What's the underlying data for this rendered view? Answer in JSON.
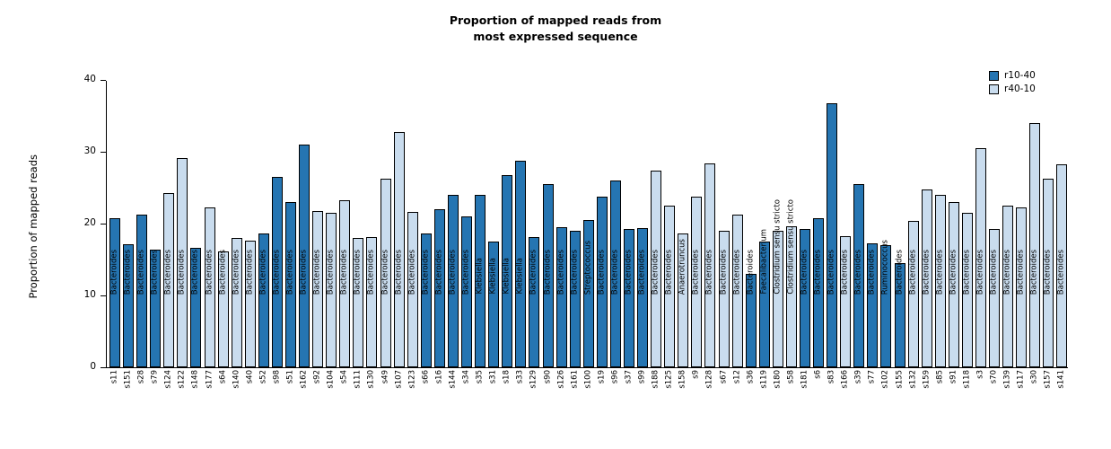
{
  "title": {
    "line1": "Proportion of mapped reads from",
    "line2": "most expressed sequence"
  },
  "y_axis": {
    "label": "Proportion of mapped reads",
    "ticks": [
      0,
      10,
      20,
      30,
      40
    ]
  },
  "legend": [
    {
      "label": "r10-40",
      "color": "#2575b2"
    },
    {
      "label": "r40-10",
      "color": "#c9dcee"
    }
  ],
  "chart_data": {
    "type": "bar",
    "title": "Proportion of mapped reads from most expressed sequence",
    "xlabel": "",
    "ylabel": "Proportion of mapped reads",
    "ylim": [
      0,
      40
    ],
    "grid": false,
    "legend_position": "top-right",
    "bar_label_note": "each bar carries the genus name of the most expressed sequence, drawn vertically",
    "bars": [
      {
        "sample": "s11",
        "value": 20.7,
        "group": "r10-40",
        "label": "Bacteroides"
      },
      {
        "sample": "s151",
        "value": 17.1,
        "group": "r10-40",
        "label": "Bacteroides"
      },
      {
        "sample": "s28",
        "value": 21.2,
        "group": "r10-40",
        "label": "Bacteroides"
      },
      {
        "sample": "s79",
        "value": 16.4,
        "group": "r10-40",
        "label": "Bacteroides"
      },
      {
        "sample": "s124",
        "value": 24.2,
        "group": "r40-10",
        "label": "Bacteroides"
      },
      {
        "sample": "s122",
        "value": 29.1,
        "group": "r40-10",
        "label": "Bacteroides"
      },
      {
        "sample": "s148",
        "value": 16.6,
        "group": "r10-40",
        "label": "Bacteroides"
      },
      {
        "sample": "s177",
        "value": 22.2,
        "group": "r40-10",
        "label": "Bacteroides"
      },
      {
        "sample": "s64",
        "value": 16.1,
        "group": "r40-10",
        "label": "Bacteroides"
      },
      {
        "sample": "s140",
        "value": 18.0,
        "group": "r40-10",
        "label": "Bacteroides"
      },
      {
        "sample": "s40",
        "value": 17.6,
        "group": "r40-10",
        "label": "Bacteroides"
      },
      {
        "sample": "s52",
        "value": 18.6,
        "group": "r10-40",
        "label": "Bacteroides"
      },
      {
        "sample": "s98",
        "value": 26.5,
        "group": "r10-40",
        "label": "Bacteroides"
      },
      {
        "sample": "s51",
        "value": 23.0,
        "group": "r10-40",
        "label": "Bacteroides"
      },
      {
        "sample": "s162",
        "value": 31.0,
        "group": "r10-40",
        "label": "Bacteroides"
      },
      {
        "sample": "s92",
        "value": 21.8,
        "group": "r40-10",
        "label": "Bacteroides"
      },
      {
        "sample": "s104",
        "value": 21.5,
        "group": "r40-10",
        "label": "Bacteroides"
      },
      {
        "sample": "s54",
        "value": 23.2,
        "group": "r40-10",
        "label": "Bacteroides"
      },
      {
        "sample": "s111",
        "value": 18.0,
        "group": "r40-10",
        "label": "Bacteroides"
      },
      {
        "sample": "s130",
        "value": 18.1,
        "group": "r40-10",
        "label": "Bacteroides"
      },
      {
        "sample": "s49",
        "value": 26.2,
        "group": "r40-10",
        "label": "Bacteroides"
      },
      {
        "sample": "s107",
        "value": 32.8,
        "group": "r40-10",
        "label": "Bacteroides"
      },
      {
        "sample": "s123",
        "value": 21.6,
        "group": "r40-10",
        "label": "Bacteroides"
      },
      {
        "sample": "s66",
        "value": 18.6,
        "group": "r10-40",
        "label": "Bacteroides"
      },
      {
        "sample": "s16",
        "value": 22.0,
        "group": "r10-40",
        "label": "Bacteroides"
      },
      {
        "sample": "s144",
        "value": 24.0,
        "group": "r10-40",
        "label": "Bacteroides"
      },
      {
        "sample": "s34",
        "value": 21.0,
        "group": "r10-40",
        "label": "Bacteroides"
      },
      {
        "sample": "s35",
        "value": 24.0,
        "group": "r10-40",
        "label": "Klebsiella"
      },
      {
        "sample": "s31",
        "value": 17.5,
        "group": "r10-40",
        "label": "Klebsiella"
      },
      {
        "sample": "s18",
        "value": 26.8,
        "group": "r10-40",
        "label": "Klebsiella"
      },
      {
        "sample": "s33",
        "value": 28.7,
        "group": "r10-40",
        "label": "Klebsiella"
      },
      {
        "sample": "s129",
        "value": 18.1,
        "group": "r10-40",
        "label": "Bacteroides"
      },
      {
        "sample": "s90",
        "value": 25.5,
        "group": "r10-40",
        "label": "Bacteroides"
      },
      {
        "sample": "s126",
        "value": 19.5,
        "group": "r10-40",
        "label": "Bacteroides"
      },
      {
        "sample": "s161",
        "value": 19.0,
        "group": "r10-40",
        "label": "Bacteroides"
      },
      {
        "sample": "s100",
        "value": 20.5,
        "group": "r10-40",
        "label": "Streptococcus"
      },
      {
        "sample": "s19",
        "value": 23.8,
        "group": "r10-40",
        "label": "Bacteroides"
      },
      {
        "sample": "s96",
        "value": 26.0,
        "group": "r10-40",
        "label": "Bacteroides"
      },
      {
        "sample": "s37",
        "value": 19.3,
        "group": "r10-40",
        "label": "Bacteroides"
      },
      {
        "sample": "s99",
        "value": 19.4,
        "group": "r10-40",
        "label": "Bacteroides"
      },
      {
        "sample": "s188",
        "value": 27.4,
        "group": "r40-10",
        "label": "Bacteroides"
      },
      {
        "sample": "s125",
        "value": 22.5,
        "group": "r40-10",
        "label": "Bacteroides"
      },
      {
        "sample": "s158",
        "value": 18.6,
        "group": "r40-10",
        "label": "Anaerotruncus"
      },
      {
        "sample": "s9",
        "value": 23.8,
        "group": "r40-10",
        "label": "Bacteroides"
      },
      {
        "sample": "s128",
        "value": 28.4,
        "group": "r40-10",
        "label": "Bacteroides"
      },
      {
        "sample": "s67",
        "value": 19.0,
        "group": "r40-10",
        "label": "Bacteroides"
      },
      {
        "sample": "s12",
        "value": 21.2,
        "group": "r40-10",
        "label": "Bacteroides"
      },
      {
        "sample": "s36",
        "value": 13.0,
        "group": "r10-40",
        "label": "Bacteroides"
      },
      {
        "sample": "s119",
        "value": 17.5,
        "group": "r10-40",
        "label": "Faecalibacterium"
      },
      {
        "sample": "s180",
        "value": 19.0,
        "group": "r40-10",
        "label": "Clostridium sensu stricto"
      },
      {
        "sample": "s58",
        "value": 19.6,
        "group": "r40-10",
        "label": "Clostridium sensu stricto"
      },
      {
        "sample": "s181",
        "value": 19.3,
        "group": "r10-40",
        "label": "Bacteroides"
      },
      {
        "sample": "s6",
        "value": 20.7,
        "group": "r10-40",
        "label": "Bacteroides"
      },
      {
        "sample": "s83",
        "value": 36.8,
        "group": "r10-40",
        "label": "Bacteroides"
      },
      {
        "sample": "s166",
        "value": 18.3,
        "group": "r40-10",
        "label": "Bacteroides"
      },
      {
        "sample": "s39",
        "value": 25.5,
        "group": "r10-40",
        "label": "Bacteroides"
      },
      {
        "sample": "s77",
        "value": 17.2,
        "group": "r10-40",
        "label": "Bacteroides"
      },
      {
        "sample": "s102",
        "value": 17.0,
        "group": "r10-40",
        "label": "Ruminococcus"
      },
      {
        "sample": "s155",
        "value": 14.5,
        "group": "r10-40",
        "label": "Bacteroides"
      },
      {
        "sample": "s132",
        "value": 20.4,
        "group": "r40-10",
        "label": "Bacteroides"
      },
      {
        "sample": "s159",
        "value": 24.8,
        "group": "r40-10",
        "label": "Bacteroides"
      },
      {
        "sample": "s85",
        "value": 24.0,
        "group": "r40-10",
        "label": "Bacteroides"
      },
      {
        "sample": "s91",
        "value": 23.0,
        "group": "r40-10",
        "label": "Bacteroides"
      },
      {
        "sample": "s118",
        "value": 21.5,
        "group": "r40-10",
        "label": "Bacteroides"
      },
      {
        "sample": "s3",
        "value": 30.5,
        "group": "r40-10",
        "label": "Bacteroides"
      },
      {
        "sample": "s70",
        "value": 19.2,
        "group": "r40-10",
        "label": "Bacteroides"
      },
      {
        "sample": "s139",
        "value": 22.5,
        "group": "r40-10",
        "label": "Bacteroides"
      },
      {
        "sample": "s117",
        "value": 22.3,
        "group": "r40-10",
        "label": "Bacteroides"
      },
      {
        "sample": "s30",
        "value": 34.0,
        "group": "r40-10",
        "label": "Bacteroides"
      },
      {
        "sample": "s157",
        "value": 26.3,
        "group": "r40-10",
        "label": "Bacteroides"
      },
      {
        "sample": "s141",
        "value": 28.3,
        "group": "r40-10",
        "label": "Bacteroides"
      }
    ]
  }
}
